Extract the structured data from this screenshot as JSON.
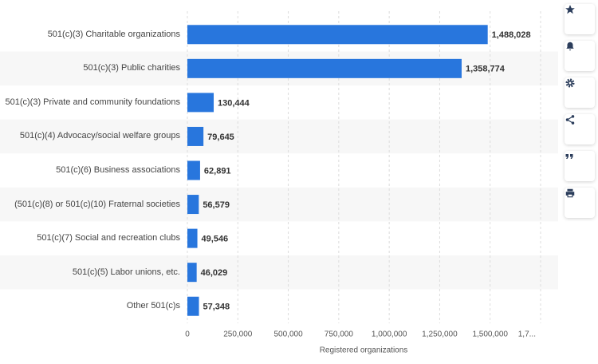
{
  "chart_data": {
    "type": "bar",
    "orientation": "horizontal",
    "categories": [
      "501(c)(3) Charitable organizations",
      "501(c)(3) Public charities",
      "501(c)(3) Private and community foundations",
      "501(c)(4) Advocacy/social welfare groups",
      "501(c)(6) Business associations",
      "(501(c)(8) or 501(c)(10) Fraternal societies",
      "501(c)(7) Social and recreation clubs",
      "501(c)(5) Labor unions, etc.",
      "Other 501(c)s"
    ],
    "values": [
      1488028,
      1358774,
      130444,
      79645,
      62891,
      56579,
      49546,
      46029,
      57348
    ],
    "value_labels": [
      "1,488,028",
      "1,358,774",
      "130,444",
      "79,645",
      "62,891",
      "56,579",
      "49,546",
      "46,029",
      "57,348"
    ],
    "color": "#2876dd",
    "xlabel": "Registered organizations",
    "xlim": [
      0,
      1750000
    ],
    "xticks": [
      0,
      {
        "value": 250000,
        "label": "250,000"
      },
      {
        "value": 500000,
        "label": "500,000"
      },
      {
        "value": 750000,
        "label": "750,000"
      },
      {
        "value": 1000000,
        "label": "1,000,000"
      },
      {
        "value": 1250000,
        "label": "1,250,000"
      },
      {
        "value": 1500000,
        "label": "1,500,000"
      },
      {
        "value": 1750000,
        "label": "1,7..."
      }
    ],
    "grid": true
  }
}
